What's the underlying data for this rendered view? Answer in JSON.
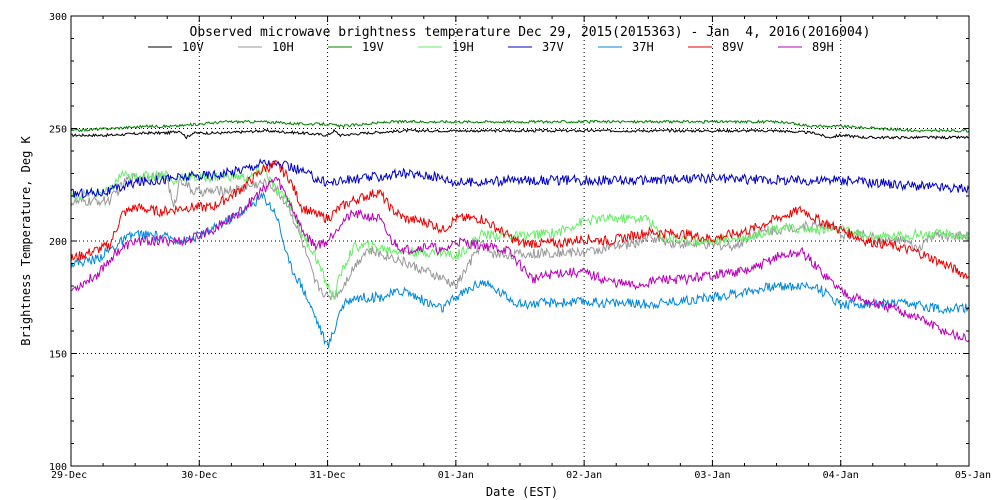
{
  "chart_data": {
    "type": "line",
    "title": "Observed microwave brightness temperature Dec 29, 2015(2015363) - Jan  4, 2016(2016004)",
    "xlabel": "Date (EST)",
    "ylabel": "Brightness Temperature, Deg K",
    "x_tick_labels": [
      "29-Dec",
      "30-Dec",
      "31-Dec",
      "01-Jan",
      "02-Jan",
      "03-Jan",
      "04-Jan",
      "05-Jan"
    ],
    "y_tick_labels": [
      "100",
      "150",
      "200",
      "250",
      "300"
    ],
    "xlim": [
      0,
      7
    ],
    "ylim": [
      100,
      300
    ],
    "y_ticks": [
      100,
      150,
      200,
      250,
      300
    ],
    "grid": true,
    "legend_placement": "top",
    "series": [
      {
        "name": "10V",
        "color": "#000000",
        "points": [
          [
            0,
            247
          ],
          [
            0.3,
            247
          ],
          [
            0.6,
            248
          ],
          [
            0.75,
            248
          ],
          [
            0.85,
            249
          ],
          [
            0.9,
            246
          ],
          [
            0.95,
            248
          ],
          [
            1.0,
            248
          ],
          [
            1.2,
            248
          ],
          [
            1.5,
            249
          ],
          [
            1.8,
            248
          ],
          [
            2.0,
            247
          ],
          [
            2.05,
            249
          ],
          [
            2.1,
            247
          ],
          [
            2.3,
            248
          ],
          [
            2.6,
            249
          ],
          [
            3.0,
            249
          ],
          [
            3.5,
            249
          ],
          [
            4.0,
            249
          ],
          [
            4.5,
            249
          ],
          [
            5.0,
            249
          ],
          [
            5.5,
            249
          ],
          [
            5.8,
            248
          ],
          [
            5.9,
            246
          ],
          [
            6.0,
            247
          ],
          [
            6.2,
            246
          ],
          [
            6.5,
            246
          ],
          [
            6.8,
            246
          ],
          [
            7.0,
            246
          ]
        ]
      },
      {
        "name": "10H",
        "color": "#999999",
        "points": [
          [
            0,
            217
          ],
          [
            0.3,
            218
          ],
          [
            0.45,
            228
          ],
          [
            0.6,
            229
          ],
          [
            0.75,
            228
          ],
          [
            0.8,
            214
          ],
          [
            0.85,
            228
          ],
          [
            0.95,
            222
          ],
          [
            1.1,
            222
          ],
          [
            1.3,
            223
          ],
          [
            1.5,
            226
          ],
          [
            1.6,
            223
          ],
          [
            1.7,
            215
          ],
          [
            1.8,
            200
          ],
          [
            1.9,
            182
          ],
          [
            2.0,
            175
          ],
          [
            2.05,
            176
          ],
          [
            2.1,
            178
          ],
          [
            2.2,
            188
          ],
          [
            2.3,
            196
          ],
          [
            2.5,
            193
          ],
          [
            2.7,
            188
          ],
          [
            2.9,
            183
          ],
          [
            3.0,
            180
          ],
          [
            3.2,
            199
          ],
          [
            3.3,
            194
          ],
          [
            3.5,
            194
          ],
          [
            3.8,
            195
          ],
          [
            4.0,
            195
          ],
          [
            4.2,
            197
          ],
          [
            4.4,
            199
          ],
          [
            4.5,
            202
          ],
          [
            4.7,
            199
          ],
          [
            5.0,
            198
          ],
          [
            5.2,
            198
          ],
          [
            5.3,
            203
          ],
          [
            5.5,
            205
          ],
          [
            5.8,
            207
          ],
          [
            5.9,
            207
          ],
          [
            6.0,
            203
          ],
          [
            6.2,
            203
          ],
          [
            6.3,
            200
          ],
          [
            6.5,
            200
          ],
          [
            6.6,
            196
          ],
          [
            6.7,
            202
          ],
          [
            6.9,
            202
          ],
          [
            7.0,
            202
          ]
        ]
      },
      {
        "name": "19V",
        "color": "#008000",
        "points": [
          [
            0,
            249
          ],
          [
            0.3,
            250
          ],
          [
            0.6,
            251
          ],
          [
            0.8,
            251
          ],
          [
            1.0,
            252
          ],
          [
            1.2,
            253
          ],
          [
            1.3,
            253
          ],
          [
            1.5,
            253
          ],
          [
            1.8,
            252
          ],
          [
            2.0,
            252
          ],
          [
            2.1,
            251
          ],
          [
            2.5,
            253
          ],
          [
            2.8,
            253
          ],
          [
            3.0,
            253
          ],
          [
            3.5,
            253
          ],
          [
            4.0,
            253
          ],
          [
            4.5,
            253
          ],
          [
            5.0,
            253
          ],
          [
            5.5,
            253
          ],
          [
            5.8,
            251
          ],
          [
            6.0,
            251
          ],
          [
            6.3,
            250
          ],
          [
            6.6,
            249
          ],
          [
            7.0,
            249
          ]
        ]
      },
      {
        "name": "19H",
        "color": "#66ee66",
        "points": [
          [
            0,
            220
          ],
          [
            0.3,
            222
          ],
          [
            0.4,
            230
          ],
          [
            0.45,
            228
          ],
          [
            0.6,
            229
          ],
          [
            0.75,
            230
          ],
          [
            0.8,
            225
          ],
          [
            0.85,
            229
          ],
          [
            1.0,
            228
          ],
          [
            1.2,
            229
          ],
          [
            1.4,
            228
          ],
          [
            1.5,
            233
          ],
          [
            1.6,
            222
          ],
          [
            1.7,
            218
          ],
          [
            1.8,
            203
          ],
          [
            1.9,
            194
          ],
          [
            2.0,
            180
          ],
          [
            2.05,
            175
          ],
          [
            2.1,
            185
          ],
          [
            2.2,
            197
          ],
          [
            2.3,
            198
          ],
          [
            2.5,
            196
          ],
          [
            2.7,
            195
          ],
          [
            2.9,
            195
          ],
          [
            3.0,
            193
          ],
          [
            3.2,
            203
          ],
          [
            3.5,
            202
          ],
          [
            3.8,
            204
          ],
          [
            4.0,
            209
          ],
          [
            4.2,
            210
          ],
          [
            4.5,
            210
          ],
          [
            4.6,
            202
          ],
          [
            4.8,
            200
          ],
          [
            5.0,
            200
          ],
          [
            5.3,
            202
          ],
          [
            5.5,
            206
          ],
          [
            5.8,
            205
          ],
          [
            6.0,
            205
          ],
          [
            6.2,
            202
          ],
          [
            6.4,
            202
          ],
          [
            6.6,
            203
          ],
          [
            6.8,
            203
          ],
          [
            7.0,
            202
          ]
        ]
      },
      {
        "name": "37V",
        "color": "#0000cc",
        "points": [
          [
            0,
            221
          ],
          [
            0.3,
            222
          ],
          [
            0.5,
            226
          ],
          [
            0.8,
            228
          ],
          [
            1.0,
            229
          ],
          [
            1.2,
            230
          ],
          [
            1.4,
            233
          ],
          [
            1.5,
            235
          ],
          [
            1.7,
            233
          ],
          [
            1.8,
            231
          ],
          [
            1.9,
            228
          ],
          [
            2.0,
            226
          ],
          [
            2.3,
            228
          ],
          [
            2.6,
            230
          ],
          [
            2.8,
            229
          ],
          [
            2.9,
            228
          ],
          [
            3.0,
            226
          ],
          [
            3.5,
            227
          ],
          [
            4.0,
            227
          ],
          [
            4.5,
            227
          ],
          [
            5.0,
            228
          ],
          [
            5.5,
            227
          ],
          [
            6.0,
            227
          ],
          [
            6.5,
            225
          ],
          [
            7.0,
            223
          ]
        ]
      },
      {
        "name": "37H",
        "color": "#0088dd",
        "points": [
          [
            0,
            190
          ],
          [
            0.2,
            192
          ],
          [
            0.4,
            200
          ],
          [
            0.5,
            203
          ],
          [
            0.7,
            202
          ],
          [
            0.9,
            200
          ],
          [
            1.1,
            205
          ],
          [
            1.3,
            212
          ],
          [
            1.5,
            220
          ],
          [
            1.6,
            212
          ],
          [
            1.7,
            190
          ],
          [
            1.8,
            180
          ],
          [
            1.9,
            167
          ],
          [
            2.0,
            153
          ],
          [
            2.05,
            160
          ],
          [
            2.1,
            170
          ],
          [
            2.2,
            175
          ],
          [
            2.4,
            175
          ],
          [
            2.6,
            178
          ],
          [
            2.8,
            172
          ],
          [
            2.9,
            170
          ],
          [
            3.0,
            175
          ],
          [
            3.2,
            182
          ],
          [
            3.5,
            172
          ],
          [
            4.0,
            173
          ],
          [
            4.5,
            172
          ],
          [
            5.0,
            175
          ],
          [
            5.5,
            180
          ],
          [
            5.8,
            180
          ],
          [
            6.0,
            172
          ],
          [
            6.2,
            172
          ],
          [
            6.5,
            172
          ],
          [
            6.8,
            170
          ],
          [
            7.0,
            170
          ]
        ]
      },
      {
        "name": "89V",
        "color": "#ee0000",
        "points": [
          [
            0,
            192
          ],
          [
            0.3,
            198
          ],
          [
            0.4,
            212
          ],
          [
            0.5,
            215
          ],
          [
            0.7,
            213
          ],
          [
            0.9,
            215
          ],
          [
            1.1,
            215
          ],
          [
            1.3,
            222
          ],
          [
            1.5,
            232
          ],
          [
            1.6,
            234
          ],
          [
            1.7,
            228
          ],
          [
            1.8,
            215
          ],
          [
            1.9,
            212
          ],
          [
            2.0,
            210
          ],
          [
            2.1,
            215
          ],
          [
            2.2,
            218
          ],
          [
            2.4,
            222
          ],
          [
            2.5,
            214
          ],
          [
            2.6,
            210
          ],
          [
            2.8,
            208
          ],
          [
            2.9,
            205
          ],
          [
            3.0,
            210
          ],
          [
            3.2,
            210
          ],
          [
            3.5,
            199
          ],
          [
            3.8,
            199
          ],
          [
            4.0,
            201
          ],
          [
            4.2,
            200
          ],
          [
            4.5,
            204
          ],
          [
            4.8,
            203
          ],
          [
            5.0,
            201
          ],
          [
            5.3,
            205
          ],
          [
            5.5,
            210
          ],
          [
            5.7,
            214
          ],
          [
            5.8,
            210
          ],
          [
            6.0,
            205
          ],
          [
            6.2,
            200
          ],
          [
            6.4,
            198
          ],
          [
            6.6,
            195
          ],
          [
            6.8,
            190
          ],
          [
            7.0,
            184
          ]
        ]
      },
      {
        "name": "89H",
        "color": "#bb00bb",
        "points": [
          [
            0,
            178
          ],
          [
            0.2,
            185
          ],
          [
            0.35,
            195
          ],
          [
            0.5,
            200
          ],
          [
            0.7,
            200
          ],
          [
            0.9,
            200
          ],
          [
            1.1,
            205
          ],
          [
            1.3,
            212
          ],
          [
            1.5,
            223
          ],
          [
            1.6,
            228
          ],
          [
            1.7,
            218
          ],
          [
            1.8,
            205
          ],
          [
            1.9,
            198
          ],
          [
            2.0,
            200
          ],
          [
            2.1,
            208
          ],
          [
            2.2,
            212
          ],
          [
            2.4,
            210
          ],
          [
            2.5,
            200
          ],
          [
            2.6,
            196
          ],
          [
            2.8,
            198
          ],
          [
            2.9,
            195
          ],
          [
            3.0,
            200
          ],
          [
            3.2,
            198
          ],
          [
            3.4,
            196
          ],
          [
            3.6,
            183
          ],
          [
            3.8,
            186
          ],
          [
            4.0,
            186
          ],
          [
            4.2,
            182
          ],
          [
            4.4,
            180
          ],
          [
            4.6,
            183
          ],
          [
            4.8,
            183
          ],
          [
            5.0,
            185
          ],
          [
            5.3,
            187
          ],
          [
            5.5,
            193
          ],
          [
            5.7,
            195
          ],
          [
            5.8,
            189
          ],
          [
            6.0,
            178
          ],
          [
            6.2,
            173
          ],
          [
            6.4,
            170
          ],
          [
            6.6,
            166
          ],
          [
            6.8,
            160
          ],
          [
            7.0,
            156
          ]
        ]
      }
    ]
  }
}
